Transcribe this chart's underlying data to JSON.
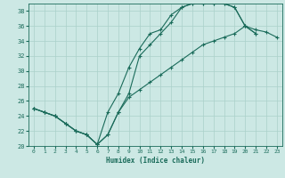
{
  "xlabel": "Humidex (Indice chaleur)",
  "bg_color": "#cce8e4",
  "grid_color": "#aad0ca",
  "line_color": "#1a6b5a",
  "xlim": [
    -0.5,
    23.5
  ],
  "ylim": [
    20,
    39
  ],
  "xticks": [
    0,
    1,
    2,
    3,
    4,
    5,
    6,
    7,
    8,
    9,
    10,
    11,
    12,
    13,
    14,
    15,
    16,
    17,
    18,
    19,
    20,
    21,
    22,
    23
  ],
  "yticks": [
    20,
    22,
    24,
    26,
    28,
    30,
    32,
    34,
    36,
    38
  ],
  "line1_x": [
    0,
    1,
    2,
    3,
    4,
    5,
    6,
    7,
    8,
    9,
    10,
    11,
    12,
    13,
    14,
    15,
    16,
    17,
    18,
    19,
    20,
    21
  ],
  "line1_y": [
    25.0,
    24.5,
    24.0,
    23.0,
    22.0,
    21.5,
    20.2,
    24.5,
    27.0,
    30.5,
    33.0,
    35.0,
    35.5,
    37.5,
    38.5,
    39.0,
    39.0,
    39.0,
    39.0,
    38.5,
    36.0,
    35.0
  ],
  "line2_x": [
    0,
    1,
    2,
    3,
    4,
    5,
    6,
    7,
    8,
    9,
    10,
    11,
    12,
    13,
    14,
    15,
    16,
    17,
    18,
    19,
    20,
    21
  ],
  "line2_y": [
    25.0,
    24.5,
    24.0,
    23.0,
    22.0,
    21.5,
    20.2,
    21.5,
    24.5,
    27.0,
    32.0,
    33.5,
    35.0,
    36.5,
    38.5,
    39.0,
    39.0,
    39.0,
    39.0,
    38.5,
    36.0,
    35.0
  ],
  "line3_x": [
    0,
    1,
    2,
    3,
    4,
    5,
    6,
    7,
    8,
    9,
    10,
    11,
    12,
    13,
    14,
    15,
    16,
    17,
    18,
    19,
    20,
    21,
    22,
    23
  ],
  "line3_y": [
    25.0,
    24.5,
    24.0,
    23.0,
    22.0,
    21.5,
    20.2,
    21.5,
    24.5,
    26.5,
    27.5,
    28.5,
    29.5,
    30.5,
    31.5,
    32.5,
    33.5,
    34.0,
    34.5,
    35.0,
    36.0,
    35.5,
    35.2,
    34.5
  ]
}
